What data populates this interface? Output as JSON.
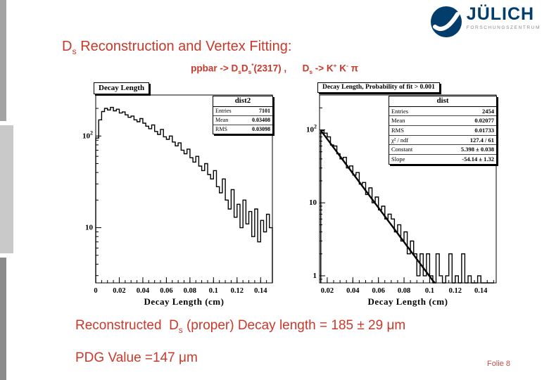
{
  "theme": {
    "accent": "#c9392b",
    "logo_blue": "#023d6b",
    "footer_color": "#c0504d"
  },
  "logo": {
    "name": "JÜLICH",
    "subtitle": "FORSCHUNGSZENTRUM"
  },
  "slide": {
    "title_segments": [
      {
        "t": "D"
      },
      {
        "t": "s",
        "b": "sub"
      },
      {
        "t": " Reconstruction and Vertex Fitting:"
      }
    ],
    "subtitle_segments": [
      {
        "t": "ppbar -> D"
      },
      {
        "t": "s",
        "b": "sub"
      },
      {
        "t": "D"
      },
      {
        "t": "s",
        "b": "sub"
      },
      {
        "t": "*",
        "b": "sup"
      },
      {
        "t": "(2317) ,      "
      },
      {
        "t": "D"
      },
      {
        "t": "s",
        "b": "sub"
      },
      {
        "t": " -> K"
      },
      {
        "t": "+",
        "b": "sup"
      },
      {
        "t": " K"
      },
      {
        "t": "-",
        "b": "sup"
      },
      {
        "t": " π"
      }
    ],
    "result_segments": [
      {
        "t": "Reconstructed  D"
      },
      {
        "t": "s",
        "b": "sub"
      },
      {
        "t": " (proper) Decay length = 185 ± 29 μm"
      }
    ],
    "pdg_text": "PDG Value =147 μm",
    "footer": "Folie 8"
  },
  "chart_data": [
    {
      "type": "bar",
      "title": "Decay Length",
      "xlabel": "Decay Length (cm)",
      "ylabel": "",
      "y_scale": "log",
      "xlim": [
        0,
        0.15
      ],
      "ylim": [
        2.5,
        280
      ],
      "x_ticks": [
        0,
        0.02,
        0.04,
        0.06,
        0.08,
        0.1,
        0.12,
        0.14
      ],
      "bin_start": 0,
      "bin_width": 0.0025,
      "values": [
        95,
        150,
        185,
        200,
        192,
        205,
        188,
        196,
        178,
        183,
        170,
        160,
        165,
        150,
        143,
        155,
        138,
        128,
        120,
        132,
        112,
        104,
        118,
        98,
        92,
        100,
        86,
        78,
        84,
        70,
        64,
        72,
        58,
        52,
        60,
        47,
        42,
        50,
        38,
        34,
        42,
        28,
        24,
        34,
        20,
        16,
        26,
        13,
        18,
        10,
        20,
        11,
        15,
        8,
        16,
        7,
        12,
        9,
        14,
        10
      ],
      "stats": {
        "name": "dist2",
        "rows": [
          {
            "label": "Entries",
            "value": "7101"
          },
          {
            "label": "Mean",
            "value": "0.03408"
          },
          {
            "label": "RMS",
            "value": "0.03098"
          }
        ]
      }
    },
    {
      "type": "bar",
      "title": "Decay Length, Probability of fit > 0.001",
      "xlabel": "Decay Length (cm)",
      "ylabel": "",
      "y_scale": "log",
      "xlim": [
        0.014,
        0.152
      ],
      "ylim": [
        0.8,
        300
      ],
      "x_ticks": [
        0.02,
        0.04,
        0.06,
        0.08,
        0.1,
        0.12,
        0.14
      ],
      "bin_start": 0.015,
      "bin_width": 0.0025,
      "values": [
        98,
        90,
        80,
        62,
        60,
        47,
        40,
        42,
        30,
        32,
        24,
        26,
        18,
        19,
        13,
        16,
        10,
        12,
        8,
        9,
        6,
        7,
        6,
        4,
        5,
        3,
        4,
        2,
        3,
        2,
        1,
        2,
        1,
        2,
        1,
        0,
        2,
        1,
        0,
        1,
        2,
        0,
        1,
        0,
        2,
        0,
        1,
        0,
        0,
        1,
        0,
        0,
        0,
        0
      ],
      "fit": {
        "type": "expo",
        "constant": 5.398,
        "slope": -54.14,
        "x_from": 0.015,
        "x_to": 0.104
      },
      "stats": {
        "name": "dist",
        "rows": [
          {
            "label": "Entries",
            "value": "2454"
          },
          {
            "label": "Mean",
            "value": "0.02077"
          },
          {
            "label": "RMS",
            "value": "0.01733"
          },
          {
            "label": "χ² / ndf",
            "value": "127.4 / 61"
          },
          {
            "label": "Constant",
            "value": "5.398 ± 0.038"
          },
          {
            "label": "Slope",
            "value": "-54.14 ± 1.32"
          }
        ]
      }
    }
  ]
}
